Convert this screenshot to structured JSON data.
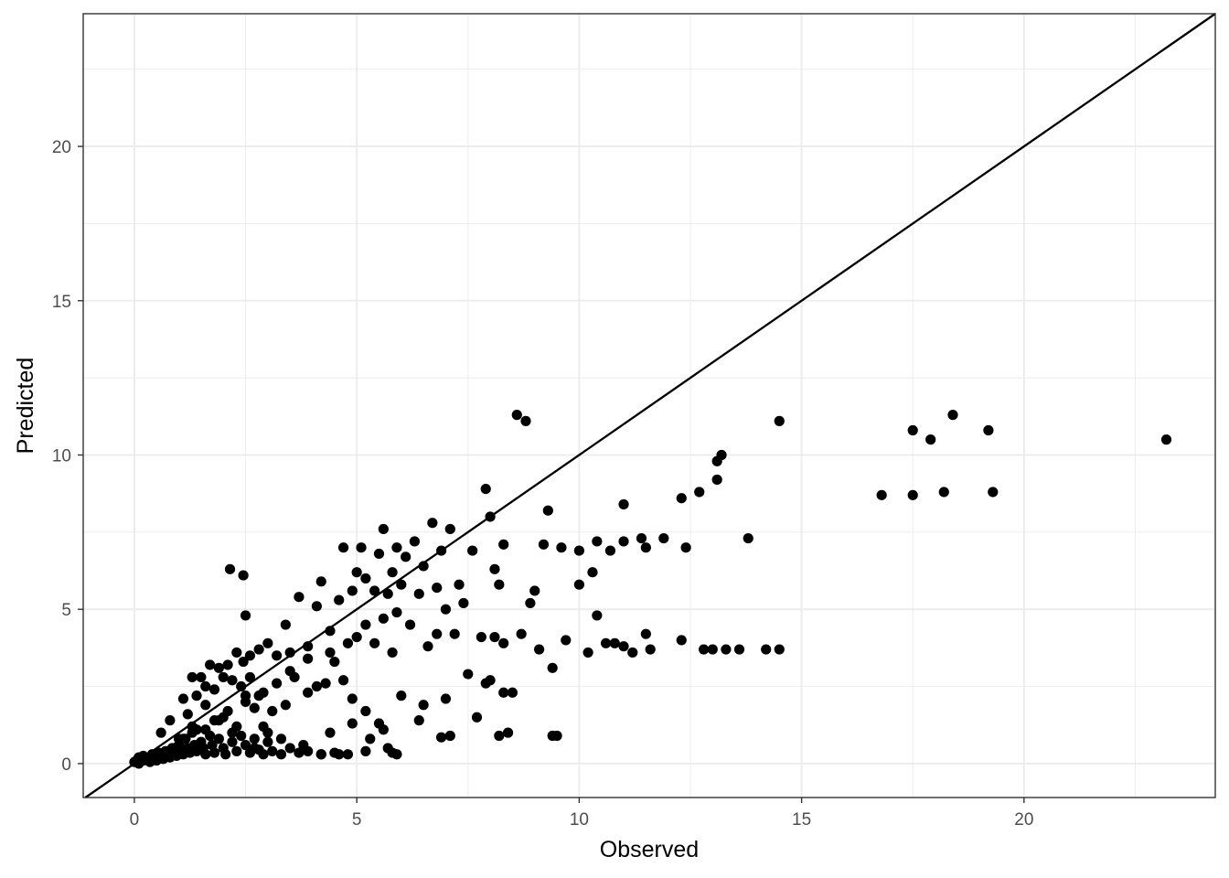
{
  "chart_data": {
    "type": "scatter",
    "title": "",
    "xlabel": "Observed",
    "ylabel": "Predicted",
    "xlim": [
      -1.15,
      24.3
    ],
    "ylim": [
      -1.1,
      24.3
    ],
    "x_ticks": [
      0,
      5,
      10,
      15,
      20
    ],
    "y_ticks": [
      0,
      5,
      10,
      15,
      20
    ],
    "x_tick_labels": [
      "0",
      "5",
      "10",
      "15",
      "20"
    ],
    "y_tick_labels": [
      "0",
      "5",
      "10",
      "15",
      "20"
    ],
    "grid": true,
    "reference_line": {
      "slope": 1,
      "intercept": 0
    },
    "colors": {
      "points": "#000000",
      "grid": "#ebebeb",
      "panel_border": "#333333",
      "tick_text": "#4d4d4d"
    },
    "series": [
      {
        "points": [
          [
            0.0,
            0.05
          ],
          [
            0.05,
            0.1
          ],
          [
            0.1,
            0.0
          ],
          [
            0.1,
            0.2
          ],
          [
            0.2,
            0.1
          ],
          [
            0.2,
            0.25
          ],
          [
            0.3,
            0.15
          ],
          [
            0.35,
            0.05
          ],
          [
            0.4,
            0.3
          ],
          [
            0.45,
            0.2
          ],
          [
            0.5,
            0.1
          ],
          [
            0.55,
            0.35
          ],
          [
            0.6,
            0.25
          ],
          [
            0.65,
            0.15
          ],
          [
            0.7,
            0.4
          ],
          [
            0.75,
            0.3
          ],
          [
            0.8,
            0.2
          ],
          [
            0.85,
            0.5
          ],
          [
            0.9,
            0.35
          ],
          [
            0.95,
            0.25
          ],
          [
            1.0,
            0.6
          ],
          [
            1.05,
            0.45
          ],
          [
            1.1,
            0.3
          ],
          [
            1.15,
            0.8
          ],
          [
            1.2,
            0.5
          ],
          [
            1.25,
            0.35
          ],
          [
            1.3,
            1.0
          ],
          [
            1.35,
            0.6
          ],
          [
            1.4,
            0.4
          ],
          [
            1.5,
            0.7
          ],
          [
            1.55,
            0.5
          ],
          [
            1.6,
            0.3
          ],
          [
            1.7,
            0.9
          ],
          [
            1.75,
            0.6
          ],
          [
            1.8,
            0.35
          ],
          [
            1.9,
            0.8
          ],
          [
            2.0,
            0.5
          ],
          [
            2.05,
            0.3
          ],
          [
            2.2,
            0.7
          ],
          [
            2.3,
            0.4
          ],
          [
            2.4,
            0.9
          ],
          [
            2.5,
            0.6
          ],
          [
            2.6,
            0.35
          ],
          [
            2.7,
            0.8
          ],
          [
            2.8,
            0.45
          ],
          [
            2.9,
            0.3
          ],
          [
            3.0,
            0.7
          ],
          [
            3.1,
            0.4
          ],
          [
            3.3,
            0.3
          ],
          [
            3.5,
            0.5
          ],
          [
            3.7,
            0.35
          ],
          [
            3.9,
            0.4
          ],
          [
            4.2,
            0.3
          ],
          [
            4.5,
            0.35
          ],
          [
            4.8,
            0.3
          ],
          [
            5.2,
            0.4
          ],
          [
            5.8,
            0.35
          ],
          [
            0.6,
            1.0
          ],
          [
            0.8,
            1.4
          ],
          [
            1.2,
            1.6
          ],
          [
            1.4,
            2.2
          ],
          [
            1.5,
            2.8
          ],
          [
            1.6,
            2.5
          ],
          [
            1.7,
            3.2
          ],
          [
            1.8,
            2.4
          ],
          [
            1.9,
            3.1
          ],
          [
            2.0,
            2.8
          ],
          [
            2.1,
            3.2
          ],
          [
            2.2,
            2.7
          ],
          [
            2.3,
            3.6
          ],
          [
            2.4,
            2.5
          ],
          [
            2.45,
            3.3
          ],
          [
            2.5,
            2.2
          ],
          [
            2.6,
            3.5
          ],
          [
            2.7,
            1.8
          ],
          [
            2.8,
            3.7
          ],
          [
            2.9,
            1.2
          ],
          [
            3.0,
            3.9
          ],
          [
            3.2,
            3.5
          ],
          [
            3.4,
            4.5
          ],
          [
            3.5,
            3.6
          ],
          [
            3.7,
            5.4
          ],
          [
            3.9,
            3.8
          ],
          [
            4.1,
            5.1
          ],
          [
            4.2,
            5.9
          ],
          [
            4.4,
            4.3
          ],
          [
            4.6,
            5.3
          ],
          [
            4.7,
            7.0
          ],
          [
            4.9,
            5.6
          ],
          [
            5.0,
            6.2
          ],
          [
            5.1,
            7.0
          ],
          [
            5.2,
            6.0
          ],
          [
            5.4,
            5.6
          ],
          [
            5.5,
            6.8
          ],
          [
            5.6,
            7.6
          ],
          [
            5.7,
            5.5
          ],
          [
            5.8,
            6.2
          ],
          [
            5.9,
            7.0
          ],
          [
            6.0,
            5.8
          ],
          [
            6.1,
            6.7
          ],
          [
            6.3,
            7.2
          ],
          [
            6.5,
            6.4
          ],
          [
            6.7,
            7.8
          ],
          [
            6.9,
            6.9
          ],
          [
            7.1,
            7.6
          ],
          [
            7.3,
            5.8
          ],
          [
            7.6,
            6.9
          ],
          [
            7.9,
            8.9
          ],
          [
            8.1,
            6.3
          ],
          [
            8.3,
            7.1
          ],
          [
            8.6,
            11.3
          ],
          [
            8.8,
            11.1
          ],
          [
            2.15,
            6.3
          ],
          [
            2.45,
            6.1
          ],
          [
            2.5,
            4.8
          ],
          [
            1.1,
            2.1
          ],
          [
            1.3,
            2.8
          ],
          [
            1.6,
            1.9
          ],
          [
            2.0,
            1.5
          ],
          [
            2.3,
            1.2
          ],
          [
            2.6,
            2.8
          ],
          [
            2.8,
            2.2
          ],
          [
            3.1,
            1.7
          ],
          [
            3.4,
            1.9
          ],
          [
            3.6,
            2.8
          ],
          [
            3.9,
            2.3
          ],
          [
            4.1,
            2.5
          ],
          [
            4.3,
            2.6
          ],
          [
            4.5,
            3.3
          ],
          [
            4.7,
            2.7
          ],
          [
            4.9,
            2.1
          ],
          [
            5.0,
            4.1
          ],
          [
            5.2,
            1.7
          ],
          [
            5.4,
            3.9
          ],
          [
            5.6,
            1.1
          ],
          [
            5.8,
            3.6
          ],
          [
            6.0,
            2.2
          ],
          [
            6.2,
            4.5
          ],
          [
            6.4,
            1.4
          ],
          [
            6.6,
            3.8
          ],
          [
            6.8,
            4.2
          ],
          [
            7.0,
            2.1
          ],
          [
            7.2,
            4.2
          ],
          [
            7.5,
            2.9
          ],
          [
            7.7,
            1.5
          ],
          [
            7.9,
            2.6
          ],
          [
            8.1,
            4.1
          ],
          [
            8.3,
            3.9
          ],
          [
            8.5,
            2.3
          ],
          [
            8.7,
            4.2
          ],
          [
            8.9,
            5.2
          ],
          [
            9.1,
            3.7
          ],
          [
            9.4,
            3.1
          ],
          [
            9.7,
            4.0
          ],
          [
            10.0,
            5.8
          ],
          [
            10.2,
            3.6
          ],
          [
            10.4,
            4.8
          ],
          [
            10.6,
            3.9
          ],
          [
            10.8,
            3.9
          ],
          [
            11.0,
            3.8
          ],
          [
            11.2,
            3.6
          ],
          [
            11.5,
            4.2
          ],
          [
            11.6,
            3.7
          ],
          [
            12.3,
            4.0
          ],
          [
            12.8,
            3.7
          ],
          [
            13.0,
            3.7
          ],
          [
            13.3,
            3.7
          ],
          [
            13.6,
            3.7
          ],
          [
            14.2,
            3.7
          ],
          [
            14.5,
            3.7
          ],
          [
            9.3,
            8.2
          ],
          [
            9.2,
            7.1
          ],
          [
            10.0,
            6.9
          ],
          [
            10.3,
            6.2
          ],
          [
            10.4,
            7.2
          ],
          [
            10.7,
            6.9
          ],
          [
            11.0,
            7.2
          ],
          [
            11.4,
            7.3
          ],
          [
            11.5,
            7.0
          ],
          [
            11.9,
            7.3
          ],
          [
            12.4,
            7.0
          ],
          [
            13.8,
            7.3
          ],
          [
            11.0,
            8.4
          ],
          [
            12.3,
            8.6
          ],
          [
            12.7,
            8.8
          ],
          [
            13.1,
            9.8
          ],
          [
            13.2,
            10.0
          ],
          [
            13.1,
            9.2
          ],
          [
            14.5,
            11.1
          ],
          [
            16.8,
            8.7
          ],
          [
            17.5,
            8.7
          ],
          [
            17.5,
            10.8
          ],
          [
            17.9,
            10.5
          ],
          [
            18.2,
            8.8
          ],
          [
            18.4,
            11.3
          ],
          [
            19.2,
            10.8
          ],
          [
            19.3,
            8.8
          ],
          [
            23.2,
            10.5
          ],
          [
            8.0,
            8.0
          ],
          [
            8.2,
            5.8
          ],
          [
            7.8,
            4.1
          ],
          [
            8.0,
            2.7
          ],
          [
            8.3,
            2.3
          ],
          [
            8.4,
            1.0
          ],
          [
            8.2,
            0.9
          ],
          [
            9.4,
            0.9
          ],
          [
            9.5,
            0.9
          ],
          [
            7.1,
            0.9
          ],
          [
            6.9,
            0.85
          ],
          [
            6.5,
            1.9
          ],
          [
            5.9,
            0.3
          ],
          [
            5.7,
            0.5
          ],
          [
            5.3,
            0.8
          ],
          [
            5.5,
            1.3
          ],
          [
            4.9,
            1.3
          ],
          [
            4.4,
            1.0
          ],
          [
            4.6,
            0.3
          ],
          [
            4.2,
            0.3
          ],
          [
            3.8,
            0.6
          ],
          [
            3.3,
            0.8
          ],
          [
            3.0,
            1.0
          ],
          [
            2.7,
            0.5
          ],
          [
            2.2,
            1.0
          ],
          [
            1.9,
            1.4
          ],
          [
            1.6,
            1.1
          ],
          [
            1.3,
            1.2
          ],
          [
            1.1,
            0.8
          ],
          [
            0.9,
            0.5
          ],
          [
            7.0,
            5.0
          ],
          [
            7.4,
            5.2
          ],
          [
            6.8,
            5.7
          ],
          [
            6.4,
            5.5
          ],
          [
            5.9,
            4.9
          ],
          [
            5.6,
            4.7
          ],
          [
            5.2,
            4.5
          ],
          [
            4.8,
            3.9
          ],
          [
            4.4,
            3.6
          ],
          [
            3.9,
            3.4
          ],
          [
            3.5,
            3.0
          ],
          [
            3.2,
            2.6
          ],
          [
            2.9,
            2.3
          ],
          [
            2.5,
            2.0
          ],
          [
            2.1,
            1.7
          ],
          [
            1.8,
            1.4
          ],
          [
            1.4,
            1.1
          ],
          [
            1.0,
            0.8
          ],
          [
            9.6,
            7.0
          ],
          [
            9.0,
            5.6
          ]
        ]
      }
    ]
  }
}
